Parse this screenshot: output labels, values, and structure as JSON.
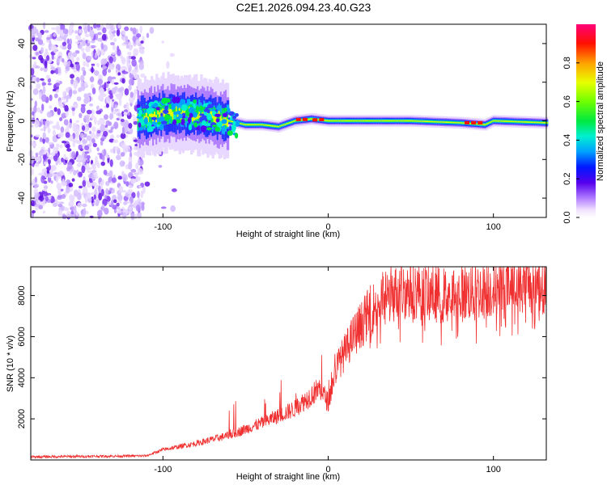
{
  "figure": {
    "title": "C2E1.2026.094.23.40.G23"
  },
  "chart_data": [
    {
      "type": "heatmap",
      "title": "C2E1.2026.094.23.40.G23",
      "xlabel": "Height of straight line (km)",
      "ylabel": "Frequency (Hz)",
      "xlim": [
        -180,
        132
      ],
      "ylim": [
        -50,
        50
      ],
      "xticks": [
        -100,
        0,
        100
      ],
      "yticks": [
        -40,
        -20,
        0,
        20,
        40
      ],
      "xtick_labels": [
        "-100",
        "0",
        "100"
      ],
      "ytick_labels": [
        "-40",
        "-20",
        "0",
        "20",
        "40"
      ],
      "colorbar": {
        "label": "Normalized spectral amplitude",
        "range": [
          0,
          1
        ],
        "ticks": [
          0.0,
          0.2,
          0.4,
          0.6,
          0.8
        ],
        "tick_labels": [
          "0.0",
          "0.2",
          "0.4",
          "0.6",
          "0.8"
        ]
      },
      "description_points": {
        "noise_region_x": [
          -180,
          -112
        ],
        "ridge_center_hz": [
          {
            "x": -115,
            "hz": 1
          },
          {
            "x": -100,
            "hz": 4
          },
          {
            "x": -90,
            "hz": 4
          },
          {
            "x": -80,
            "hz": 3
          },
          {
            "x": -70,
            "hz": 2
          },
          {
            "x": -60,
            "hz": 0
          },
          {
            "x": -50,
            "hz": -2
          },
          {
            "x": -40,
            "hz": -2
          },
          {
            "x": -30,
            "hz": -3
          },
          {
            "x": -20,
            "hz": 0
          },
          {
            "x": -10,
            "hz": 1
          },
          {
            "x": 0,
            "hz": 0
          },
          {
            "x": 20,
            "hz": 0
          },
          {
            "x": 50,
            "hz": 0
          },
          {
            "x": 80,
            "hz": -1
          },
          {
            "x": 95,
            "hz": -2
          },
          {
            "x": 100,
            "hz": 0
          },
          {
            "x": 132,
            "hz": -1
          }
        ]
      }
    },
    {
      "type": "line",
      "xlabel": "Height of straight line (km)",
      "ylabel": "SNR (10 * v/v)",
      "xlim": [
        -180,
        132
      ],
      "ylim": [
        0,
        9400
      ],
      "xticks": [
        -100,
        0,
        100
      ],
      "yticks": [
        2000,
        4000,
        6000,
        8000
      ],
      "xtick_labels": [
        "-100",
        "0",
        "100"
      ],
      "ytick_labels": [
        "2000",
        "4000",
        "6000",
        "8000"
      ],
      "color": "#f03030",
      "envelope": [
        {
          "x": -180,
          "y": 150
        },
        {
          "x": -110,
          "y": 200
        },
        {
          "x": -100,
          "y": 500
        },
        {
          "x": -80,
          "y": 800
        },
        {
          "x": -60,
          "y": 1200
        },
        {
          "x": -40,
          "y": 1800
        },
        {
          "x": -20,
          "y": 2500
        },
        {
          "x": -5,
          "y": 3500
        },
        {
          "x": 0,
          "y": 2800
        },
        {
          "x": 5,
          "y": 4500
        },
        {
          "x": 15,
          "y": 6000
        },
        {
          "x": 25,
          "y": 7200
        },
        {
          "x": 35,
          "y": 8000
        },
        {
          "x": 50,
          "y": 8300
        },
        {
          "x": 70,
          "y": 8000
        },
        {
          "x": 90,
          "y": 8200
        },
        {
          "x": 110,
          "y": 8500
        },
        {
          "x": 132,
          "y": 8600
        }
      ]
    }
  ]
}
